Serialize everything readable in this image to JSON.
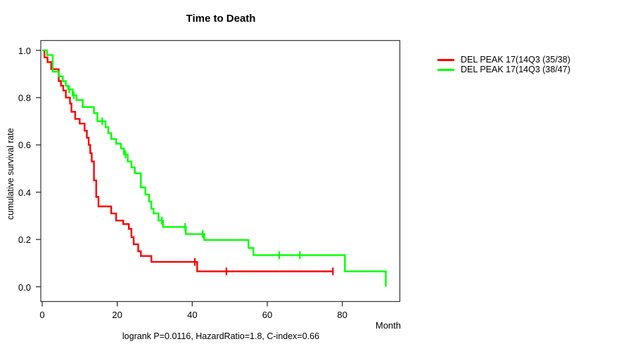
{
  "title": "Time to Death",
  "footer": "logrank P=0.0116, HazardRatio=1.8, C-index=0.66",
  "axes": {
    "x_label": "Month",
    "y_label": "cumulative survival rate"
  },
  "legend": {
    "items": [
      {
        "label": "DEL PEAK 17(14Q3 (35/38)",
        "color": "#ff0000"
      },
      {
        "label": "DEL PEAK 17(14Q3 (38/47)",
        "color": "#00ff00"
      }
    ]
  },
  "chart_data": {
    "type": "line",
    "subtype": "kaplan_meier_step",
    "title": "Time to Death",
    "xlabel": "Month",
    "ylabel": "cumulative survival rate",
    "xlim": [
      0,
      95
    ],
    "ylim": [
      0,
      1
    ],
    "x_ticks": [
      0,
      20,
      40,
      60,
      80
    ],
    "y_ticks": [
      0,
      0.2,
      0.4,
      0.6,
      0.8,
      1
    ],
    "grid": false,
    "legend_position": "right-outside",
    "annotation": "logrank P=0.0116, HazardRatio=1.8, C-index=0.66",
    "series": [
      {
        "name": "DEL PEAK 17(14Q3 (35/38)",
        "color": "#ff0000",
        "steps": [
          [
            0,
            1.0
          ],
          [
            0.6,
            0.97
          ],
          [
            1.4,
            0.95
          ],
          [
            2.4,
            0.92
          ],
          [
            4.4,
            0.87
          ],
          [
            5.0,
            0.85
          ],
          [
            5.6,
            0.83
          ],
          [
            6.3,
            0.8
          ],
          [
            7.4,
            0.775
          ],
          [
            7.8,
            0.74
          ],
          [
            8.8,
            0.71
          ],
          [
            10.0,
            0.69
          ],
          [
            11.3,
            0.66
          ],
          [
            11.9,
            0.63
          ],
          [
            12.4,
            0.6
          ],
          [
            12.8,
            0.565
          ],
          [
            13.2,
            0.53
          ],
          [
            13.8,
            0.45
          ],
          [
            14.4,
            0.38
          ],
          [
            15.0,
            0.34
          ],
          [
            18.4,
            0.31
          ],
          [
            19.7,
            0.28
          ],
          [
            21.6,
            0.265
          ],
          [
            23.1,
            0.245
          ],
          [
            23.8,
            0.21
          ],
          [
            24.4,
            0.18
          ],
          [
            25.6,
            0.15
          ],
          [
            26.3,
            0.13
          ],
          [
            29.1,
            0.105
          ],
          [
            41.3,
            0.065
          ],
          [
            77.5,
            0.065
          ]
        ],
        "censor_marks": [
          [
            40.7,
            0.105
          ],
          [
            49.1,
            0.065
          ],
          [
            77.5,
            0.065
          ]
        ]
      },
      {
        "name": "DEL PEAK 17(14Q3 (38/47)",
        "color": "#00ff00",
        "steps": [
          [
            0,
            1.0
          ],
          [
            1.3,
            0.98
          ],
          [
            2.8,
            0.91
          ],
          [
            4.4,
            0.89
          ],
          [
            5.5,
            0.87
          ],
          [
            6.3,
            0.85
          ],
          [
            6.9,
            0.835
          ],
          [
            8.1,
            0.81
          ],
          [
            9.1,
            0.79
          ],
          [
            10.8,
            0.76
          ],
          [
            13.8,
            0.735
          ],
          [
            14.7,
            0.7
          ],
          [
            16.9,
            0.675
          ],
          [
            17.6,
            0.65
          ],
          [
            18.4,
            0.625
          ],
          [
            19.7,
            0.605
          ],
          [
            21.0,
            0.585
          ],
          [
            21.8,
            0.56
          ],
          [
            22.8,
            0.53
          ],
          [
            23.8,
            0.505
          ],
          [
            24.7,
            0.48
          ],
          [
            26.3,
            0.42
          ],
          [
            27.5,
            0.39
          ],
          [
            28.5,
            0.36
          ],
          [
            29.1,
            0.33
          ],
          [
            29.7,
            0.31
          ],
          [
            31.0,
            0.28
          ],
          [
            32.2,
            0.253
          ],
          [
            38.3,
            0.223
          ],
          [
            43.2,
            0.198
          ],
          [
            55.0,
            0.164
          ],
          [
            56.3,
            0.134
          ],
          [
            80.7,
            0.065
          ],
          [
            91.6,
            0.0
          ]
        ],
        "censor_marks": [
          [
            7.2,
            0.835
          ],
          [
            8.4,
            0.81
          ],
          [
            16.0,
            0.7
          ],
          [
            22.2,
            0.56
          ],
          [
            31.9,
            0.28
          ],
          [
            38.1,
            0.253
          ],
          [
            42.8,
            0.223
          ],
          [
            63.2,
            0.134
          ],
          [
            68.7,
            0.134
          ]
        ]
      }
    ]
  }
}
